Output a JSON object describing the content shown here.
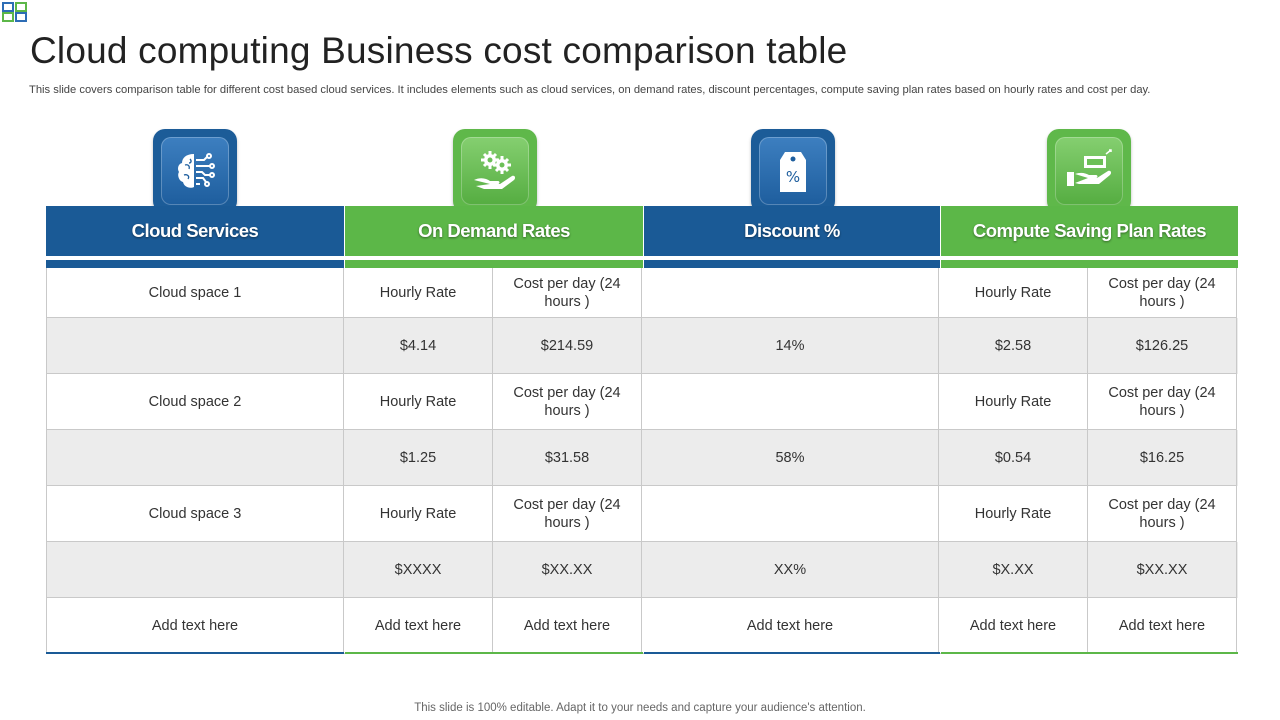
{
  "title": "Cloud computing Business cost comparison table",
  "subtitle": "This slide covers comparison table for different cost based cloud services. It includes elements such as cloud services, on demand rates, discount percentages, compute saving plan rates based on hourly rates and cost per day.",
  "footer": "This slide is 100% editable. Adapt it to your needs and capture your audience's attention.",
  "colors": {
    "blue": "#1a5a96",
    "green": "#5cb748"
  },
  "headers": [
    {
      "label": "Cloud Services",
      "icon": "brain-circuit-icon",
      "color": "blue"
    },
    {
      "label": "On Demand Rates",
      "icon": "hand-gears-icon",
      "color": "green"
    },
    {
      "label": "Discount %",
      "icon": "price-tag-percent-icon",
      "color": "blue"
    },
    {
      "label": "Compute Saving Plan Rates",
      "icon": "hand-money-icon",
      "color": "green"
    }
  ],
  "rows": [
    [
      "Cloud space 1",
      "Hourly Rate",
      "Cost per day (24 hours )",
      "",
      "Hourly Rate",
      "Cost per day (24 hours )"
    ],
    [
      "",
      "$4.14",
      "$214.59",
      "14%",
      "$2.58",
      "$126.25"
    ],
    [
      "Cloud space 2",
      "Hourly Rate",
      "Cost per day (24 hours )",
      "",
      "Hourly Rate",
      "Cost per day (24 hours )"
    ],
    [
      "",
      "$1.25",
      "$31.58",
      "58%",
      "$0.54",
      "$16.25"
    ],
    [
      "Cloud space 3",
      "Hourly Rate",
      "Cost per day (24 hours )",
      "",
      "Hourly Rate",
      "Cost per day (24 hours )"
    ],
    [
      "",
      "$XXXX",
      "$XX.XX",
      "XX%",
      "$X.XX",
      "$XX.XX"
    ],
    [
      "Add text here",
      "Add text here",
      "Add text here",
      "Add text here",
      "Add text here",
      "Add text here"
    ]
  ]
}
